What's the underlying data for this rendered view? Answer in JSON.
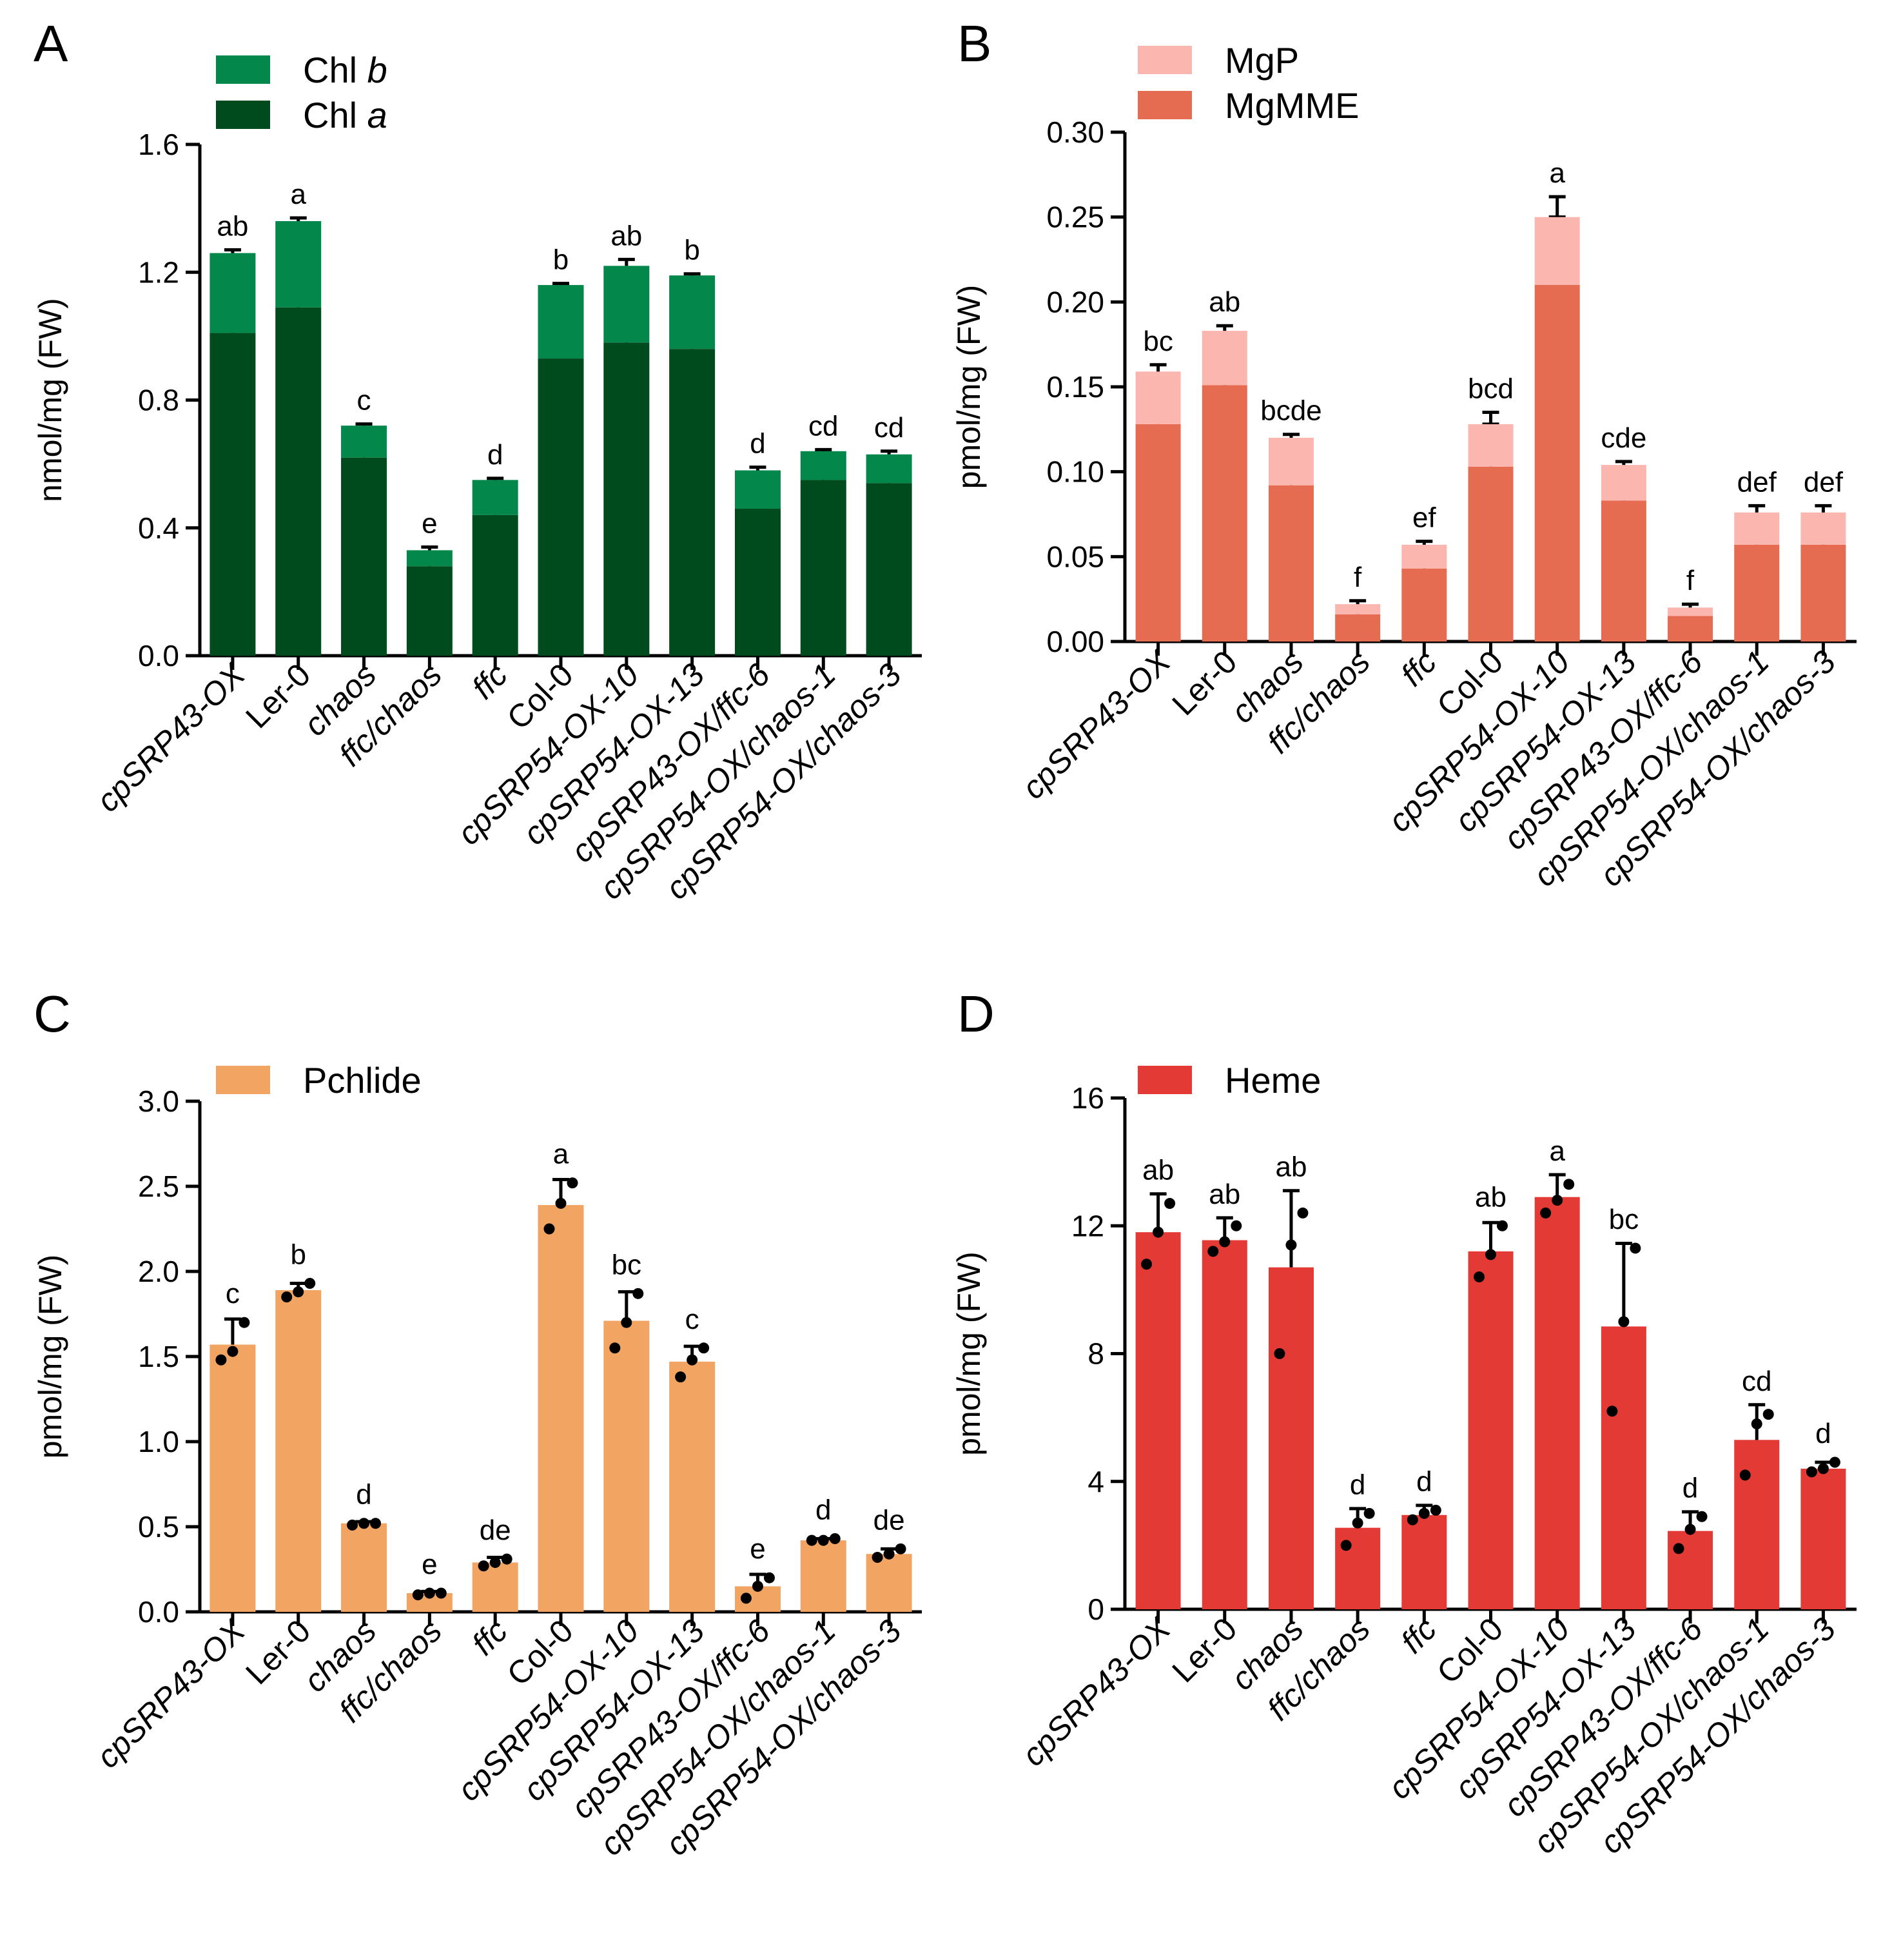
{
  "chart_data": [
    {
      "panel": "A",
      "type": "bar",
      "stacked": true,
      "ylabel": "nmol/mg (FW)",
      "ylim": [
        0,
        1.6
      ],
      "yticks": [
        "0.0",
        "0.4",
        "0.8",
        "1.2",
        "1.6"
      ],
      "categories": [
        "cpSRP43-OX",
        "Ler-0",
        "chaos",
        "ffc/chaos",
        "ffc",
        "Col-0",
        "cpSRP54-OX-10",
        "cpSRP54-OX-13",
        "cpSRP43-OX/ffc-6",
        "cpSRP54-OX/chaos-1",
        "cpSRP54-OX/chaos-3"
      ],
      "italic_categories": [
        true,
        false,
        true,
        true,
        true,
        false,
        true,
        true,
        true,
        true,
        true
      ],
      "series": [
        {
          "name": "Chl a",
          "legend_base": "Chl ",
          "legend_italic": "a",
          "color": "#004b1d",
          "values": [
            1.01,
            1.09,
            0.62,
            0.28,
            0.44,
            0.93,
            0.98,
            0.96,
            0.46,
            0.55,
            0.54
          ],
          "errors": [
            0.06,
            0.03,
            0.03,
            0.03,
            0.01,
            0.03,
            0.08,
            0.04,
            0.05,
            0.05,
            0.05
          ]
        },
        {
          "name": "Chl b",
          "legend_base": "Chl ",
          "legend_italic": "b",
          "color": "#04874a",
          "values": [
            0.25,
            0.27,
            0.1,
            0.05,
            0.11,
            0.23,
            0.24,
            0.23,
            0.12,
            0.09,
            0.09
          ],
          "errors": [
            0.01,
            0.01,
            0.005,
            0.01,
            0.005,
            0.005,
            0.02,
            0.005,
            0.01,
            0.005,
            0.01
          ]
        }
      ],
      "significance": [
        "ab",
        "a",
        "c",
        "e",
        "d",
        "b",
        "ab",
        "b",
        "d",
        "cd",
        "cd"
      ]
    },
    {
      "panel": "B",
      "type": "bar",
      "stacked": true,
      "ylabel": "pmol/mg (FW)",
      "ylim": [
        0,
        0.3
      ],
      "yticks": [
        "0.00",
        "0.05",
        "0.10",
        "0.15",
        "0.20",
        "0.25",
        "0.30"
      ],
      "categories": [
        "cpSRP43-OX",
        "Ler-0",
        "chaos",
        "ffc/chaos",
        "ffc",
        "Col-0",
        "cpSRP54-OX-10",
        "cpSRP54-OX-13",
        "cpSRP43-OX/ffc-6",
        "cpSRP54-OX/chaos-1",
        "cpSRP54-OX/chaos-3"
      ],
      "italic_categories": [
        true,
        false,
        true,
        true,
        true,
        false,
        true,
        true,
        true,
        true,
        true
      ],
      "series": [
        {
          "name": "MgMME",
          "legend_base": "MgMME",
          "legend_italic": "",
          "color": "#e56c51",
          "values": [
            0.128,
            0.151,
            0.092,
            0.016,
            0.043,
            0.103,
            0.21,
            0.083,
            0.015,
            0.057,
            0.057
          ],
          "errors": [
            0.025,
            0.008,
            0.015,
            0.004,
            0.004,
            0.025,
            0.04,
            0.012,
            0.004,
            0.015,
            0.01
          ]
        },
        {
          "name": "MgP",
          "legend_base": "MgP",
          "legend_italic": "",
          "color": "#fbb6b0",
          "values": [
            0.031,
            0.032,
            0.028,
            0.006,
            0.014,
            0.025,
            0.04,
            0.021,
            0.005,
            0.019,
            0.019
          ],
          "errors": [
            0.004,
            0.003,
            0.002,
            0.002,
            0.002,
            0.007,
            0.012,
            0.002,
            0.002,
            0.004,
            0.004
          ]
        }
      ],
      "significance": [
        "bc",
        "ab",
        "bcde",
        "f",
        "ef",
        "bcd",
        "a",
        "cde",
        "f",
        "def",
        "def"
      ]
    },
    {
      "panel": "C",
      "type": "bar",
      "stacked": false,
      "ylabel": "pmol/mg (FW)",
      "ylim": [
        0,
        3.0
      ],
      "yticks": [
        "0.0",
        "0.5",
        "1.0",
        "1.5",
        "2.0",
        "2.5",
        "3.0"
      ],
      "categories": [
        "cpSRP43-OX",
        "Ler-0",
        "chaos",
        "ffc/chaos",
        "ffc",
        "Col-0",
        "cpSRP54-OX-10",
        "cpSRP54-OX-13",
        "cpSRP43-OX/ffc-6",
        "cpSRP54-OX/chaos-1",
        "cpSRP54-OX/chaos-3"
      ],
      "italic_categories": [
        true,
        false,
        true,
        true,
        true,
        false,
        true,
        true,
        true,
        true,
        true
      ],
      "series": [
        {
          "name": "Pchlide",
          "legend_base": "Pchlide",
          "legend_italic": "",
          "color": "#f2a463",
          "values": [
            1.57,
            1.89,
            0.52,
            0.11,
            0.29,
            2.39,
            1.71,
            1.47,
            0.15,
            0.42,
            0.34
          ],
          "errors": [
            0.15,
            0.04,
            0.01,
            0.01,
            0.03,
            0.15,
            0.17,
            0.09,
            0.07,
            0.01,
            0.03
          ]
        }
      ],
      "points": [
        [
          1.48,
          1.53,
          1.7
        ],
        [
          1.85,
          1.88,
          1.93
        ],
        [
          0.51,
          0.52,
          0.52
        ],
        [
          0.1,
          0.11,
          0.11
        ],
        [
          0.27,
          0.29,
          0.31
        ],
        [
          2.25,
          2.4,
          2.52
        ],
        [
          1.55,
          1.7,
          1.87
        ],
        [
          1.38,
          1.48,
          1.55
        ],
        [
          0.08,
          0.15,
          0.2
        ],
        [
          0.42,
          0.42,
          0.43
        ],
        [
          0.32,
          0.34,
          0.37
        ]
      ],
      "significance": [
        "c",
        "b",
        "d",
        "e",
        "de",
        "a",
        "bc",
        "c",
        "e",
        "d",
        "de"
      ]
    },
    {
      "panel": "D",
      "type": "bar",
      "stacked": false,
      "ylabel": "pmol/mg (FW)",
      "ylim": [
        0,
        16
      ],
      "yticks": [
        "0",
        "4",
        "8",
        "12",
        "16"
      ],
      "categories": [
        "cpSRP43-OX",
        "Ler-0",
        "chaos",
        "ffc/chaos",
        "ffc",
        "Col-0",
        "cpSRP54-OX-10",
        "cpSRP54-OX-13",
        "cpSRP43-OX/ffc-6",
        "cpSRP54-OX/chaos-1",
        "cpSRP54-OX/chaos-3"
      ],
      "italic_categories": [
        true,
        false,
        true,
        true,
        true,
        false,
        true,
        true,
        true,
        true,
        true
      ],
      "series": [
        {
          "name": "Heme",
          "legend_base": "Heme",
          "legend_italic": "",
          "color": "#e33a35",
          "values": [
            11.8,
            11.55,
            10.7,
            2.55,
            2.95,
            11.2,
            12.9,
            8.85,
            2.45,
            5.3,
            4.4
          ],
          "errors": [
            1.2,
            0.7,
            2.4,
            0.6,
            0.3,
            0.9,
            0.7,
            2.6,
            0.6,
            1.1,
            0.2
          ]
        }
      ],
      "points": [
        [
          10.8,
          11.8,
          12.7
        ],
        [
          11.2,
          11.5,
          12.0
        ],
        [
          8.0,
          11.4,
          12.4
        ],
        [
          2.0,
          2.7,
          3.0
        ],
        [
          2.8,
          3.0,
          3.1
        ],
        [
          10.4,
          11.1,
          12.0
        ],
        [
          12.4,
          12.8,
          13.3
        ],
        [
          6.2,
          9.0,
          11.3
        ],
        [
          1.9,
          2.5,
          2.9
        ],
        [
          4.2,
          5.8,
          6.1
        ],
        [
          4.3,
          4.4,
          4.6
        ]
      ],
      "significance": [
        "ab",
        "ab",
        "ab",
        "d",
        "d",
        "ab",
        "a",
        "bc",
        "d",
        "cd",
        "d"
      ]
    }
  ]
}
